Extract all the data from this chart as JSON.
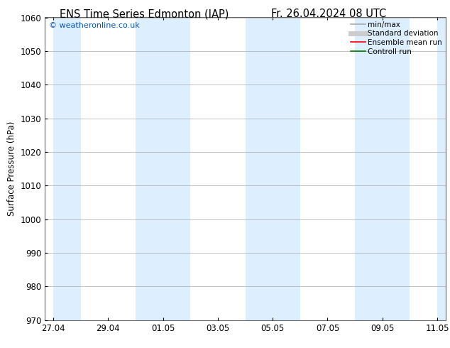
{
  "title_left": "ENS Time Series Edmonton (IAP)",
  "title_right": "Fr. 26.04.2024 08 UTC",
  "ylabel": "Surface Pressure (hPa)",
  "ylim": [
    970,
    1060
  ],
  "yticks": [
    970,
    980,
    990,
    1000,
    1010,
    1020,
    1030,
    1040,
    1050,
    1060
  ],
  "x_tick_labels": [
    "27.04",
    "29.04",
    "01.05",
    "03.05",
    "05.05",
    "07.05",
    "09.05",
    "11.05"
  ],
  "shade_color": "#ddeeff",
  "background_color": "#ffffff",
  "plot_bg_color": "#ffffff",
  "watermark": "© weatheronline.co.uk",
  "watermark_color": "#0055cc",
  "legend_items": [
    {
      "label": "min/max",
      "color": "#aaaaaa",
      "lw": 1.2,
      "style": "solid"
    },
    {
      "label": "Standard deviation",
      "color": "#cccccc",
      "lw": 5,
      "style": "solid"
    },
    {
      "label": "Ensemble mean run",
      "color": "#ff0000",
      "lw": 1.2,
      "style": "solid"
    },
    {
      "label": "Controll run",
      "color": "#007700",
      "lw": 1.2,
      "style": "solid"
    }
  ],
  "title_fontsize": 10.5,
  "tick_fontsize": 8.5,
  "ylabel_fontsize": 8.5
}
